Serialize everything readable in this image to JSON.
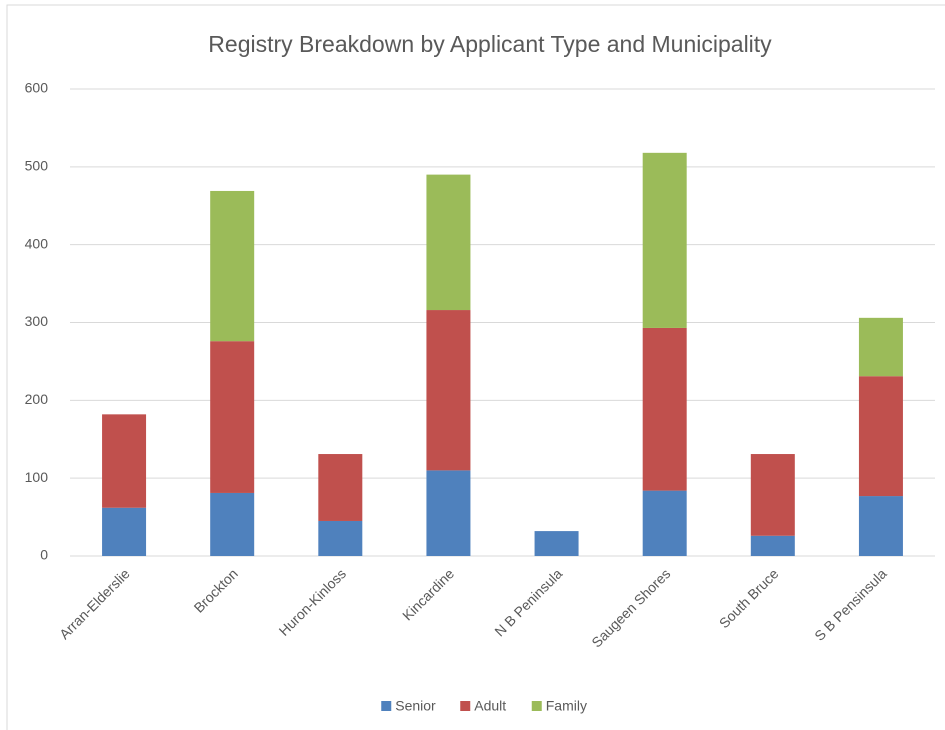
{
  "chart_data": {
    "type": "stacked_bar",
    "title": "Registry Breakdown by Applicant Type and Municipality",
    "categories": [
      "Arran-Elderslie",
      "Brockton",
      "Huron-Kinloss",
      "Kincardine",
      "N B Peninsula",
      "Saugeen Shores",
      "South Bruce",
      "S B Pensinsula"
    ],
    "series": [
      {
        "name": "Senior",
        "color": "#4f81bd",
        "values": [
          62,
          81,
          45,
          110,
          32,
          84,
          26,
          77
        ]
      },
      {
        "name": "Adult",
        "color": "#c0504d",
        "values": [
          120,
          195,
          86,
          206,
          0,
          209,
          105,
          154
        ]
      },
      {
        "name": "Family",
        "color": "#9bbb59",
        "values": [
          0,
          193,
          0,
          174,
          0,
          225,
          0,
          75
        ]
      }
    ],
    "ylim": [
      0,
      600
    ],
    "yticks": [
      0,
      100,
      200,
      300,
      400,
      500,
      600
    ],
    "grid": true,
    "legend": "bottom"
  }
}
